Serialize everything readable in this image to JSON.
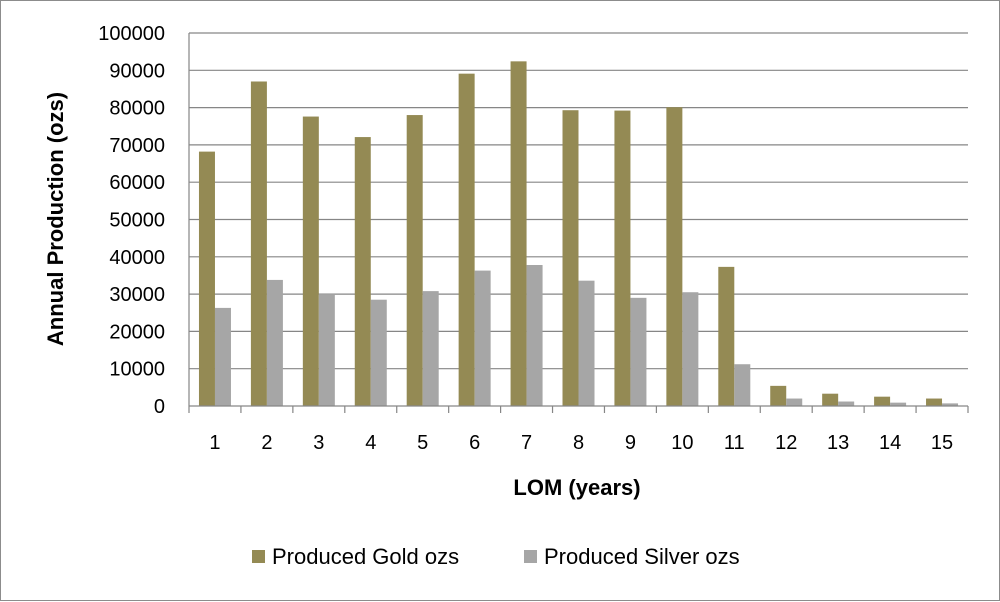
{
  "chart_data": {
    "type": "bar",
    "categories": [
      "1",
      "2",
      "3",
      "4",
      "5",
      "6",
      "7",
      "8",
      "9",
      "10",
      "11",
      "12",
      "13",
      "14",
      "15"
    ],
    "series": [
      {
        "name": "Produced Gold ozs",
        "color": "#948a54",
        "values": [
          68200,
          87000,
          77600,
          72100,
          78000,
          89100,
          92400,
          79300,
          79200,
          80100,
          37300,
          5400,
          3300,
          2500,
          2000
        ]
      },
      {
        "name": "Produced Silver ozs",
        "color": "#a6a6a6",
        "values": [
          26300,
          33800,
          30000,
          28500,
          30800,
          36300,
          37800,
          33600,
          29000,
          30500,
          11200,
          2000,
          1200,
          900,
          700
        ]
      }
    ],
    "title": "",
    "xlabel": "LOM (years)",
    "ylabel": "Annual Production (ozs)",
    "ylim": [
      0,
      100000
    ],
    "yticks": [
      0,
      10000,
      20000,
      30000,
      40000,
      50000,
      60000,
      70000,
      80000,
      90000,
      100000
    ],
    "grid": true,
    "legend_position": "bottom",
    "gridline_color": "#868686"
  }
}
